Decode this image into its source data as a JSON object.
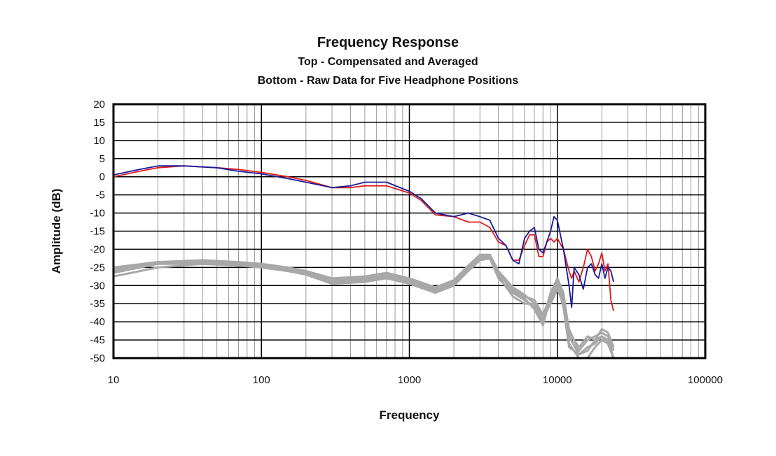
{
  "chart_data": {
    "type": "line",
    "title": "Frequency Response",
    "subtitle_lines": [
      "Top -  Compensated and Averaged",
      "Bottom - Raw Data for Five Headphone Positions"
    ],
    "xlabel": "Frequency",
    "ylabel": "Amplitude (dB)",
    "x_scale": "log",
    "xlim": [
      10,
      100000
    ],
    "ylim": [
      -50,
      20
    ],
    "x_ticks": [
      "10",
      "100",
      "1000",
      "10000",
      "100000"
    ],
    "y_ticks": [
      "20",
      "15",
      "10",
      "5",
      "0",
      "-5",
      "-10",
      "-15",
      "-20",
      "-25",
      "-30",
      "-35",
      "-40",
      "-45",
      "-50"
    ],
    "grid": true,
    "legend": "none",
    "series": [
      {
        "color": "#1a1a9c",
        "x": [
          10,
          15,
          20,
          30,
          50,
          70,
          100,
          150,
          200,
          300,
          400,
          500,
          700,
          1000,
          1200,
          1500,
          2000,
          2500,
          3000,
          3500,
          4000,
          4500,
          5000,
          5500,
          6000,
          6500,
          7000,
          7500,
          8000,
          8500,
          9000,
          9500,
          10000,
          11000,
          12000,
          12500,
          13000,
          14000,
          15000,
          16000,
          17000,
          18000,
          19000,
          20000,
          21000,
          22000,
          23000,
          24000
        ],
        "y": [
          0.5,
          2,
          3,
          3,
          2.5,
          1.5,
          0.8,
          -0.5,
          -1.5,
          -3,
          -2.5,
          -1.5,
          -1.5,
          -4,
          -6,
          -10,
          -11,
          -10,
          -11,
          -12,
          -17,
          -19,
          -23,
          -24,
          -17,
          -15,
          -14,
          -20,
          -21,
          -18,
          -15,
          -11,
          -12,
          -20,
          -30,
          -36,
          -25,
          -27,
          -31,
          -25,
          -24,
          -27,
          -28,
          -24,
          -28,
          -25,
          -26,
          -29
        ]
      },
      {
        "color": "#e01a1a",
        "x": [
          10,
          15,
          20,
          30,
          50,
          70,
          100,
          150,
          200,
          300,
          400,
          500,
          700,
          1000,
          1200,
          1500,
          2000,
          2500,
          3000,
          3500,
          4000,
          4500,
          5000,
          5500,
          6000,
          6500,
          7000,
          7500,
          8000,
          8500,
          9000,
          9500,
          10000,
          11000,
          12000,
          12500,
          13000,
          14000,
          15000,
          16000,
          17000,
          18000,
          19000,
          20000,
          21000,
          22000,
          23000,
          24000
        ],
        "y": [
          0,
          1.5,
          2.5,
          3,
          2.5,
          2,
          1.2,
          0,
          -1,
          -3,
          -3,
          -2.5,
          -2.5,
          -4.5,
          -6.5,
          -10.5,
          -11,
          -12.5,
          -12.5,
          -14,
          -18,
          -19,
          -23,
          -23,
          -19,
          -16,
          -16,
          -22,
          -22,
          -18,
          -17,
          -18,
          -17,
          -20,
          -26,
          -28,
          -26,
          -29,
          -25,
          -20,
          -22,
          -26,
          -24,
          -21,
          -26,
          -24,
          -34,
          -37
        ]
      },
      {
        "color": "#a8a8a8",
        "x": [
          10,
          20,
          40,
          70,
          100,
          150,
          200,
          300,
          500,
          700,
          1000,
          1500,
          2000,
          2500,
          3000,
          3500,
          4000,
          5000,
          6000,
          7000,
          8000,
          9000,
          10000,
          11000,
          12000,
          14000,
          16000,
          18000,
          20000,
          22000,
          24000
        ],
        "y": [
          -25,
          -23.5,
          -23.5,
          -24,
          -24.5,
          -25,
          -26,
          -28.5,
          -28,
          -27,
          -28.5,
          -31,
          -29,
          -25,
          -22,
          -22,
          -27,
          -31,
          -33,
          -34,
          -38,
          -33,
          -29,
          -33,
          -42,
          -48,
          -45,
          -44,
          -43,
          -44,
          -48
        ]
      },
      {
        "color": "#a8a8a8",
        "x": [
          10,
          20,
          40,
          70,
          100,
          150,
          200,
          300,
          500,
          700,
          1000,
          1500,
          2000,
          2500,
          3000,
          3500,
          4000,
          5000,
          6000,
          7000,
          8000,
          9000,
          10000,
          11000,
          12000,
          14000,
          16000,
          18000,
          20000,
          22000,
          24000
        ],
        "y": [
          -26,
          -24,
          -24,
          -24.5,
          -25,
          -25.5,
          -26.5,
          -29,
          -28.5,
          -27.5,
          -29,
          -31.5,
          -29.5,
          -25.5,
          -22.5,
          -22.5,
          -28,
          -32,
          -34,
          -36,
          -40,
          -34,
          -30,
          -34,
          -44,
          -49,
          -47,
          -46,
          -44,
          -45,
          -50
        ]
      },
      {
        "color": "#a8a8a8",
        "x": [
          10,
          20,
          40,
          70,
          100,
          150,
          200,
          300,
          500,
          700,
          1000,
          1500,
          2000,
          2500,
          3000,
          3500,
          4000,
          5000,
          6000,
          7000,
          8000,
          9000,
          10000,
          11000,
          12000,
          14000,
          16000,
          18000,
          20000,
          22000,
          24000
        ],
        "y": [
          -26.5,
          -24,
          -23.5,
          -24,
          -25,
          -26,
          -27,
          -29.5,
          -29,
          -28,
          -29.5,
          -32,
          -30,
          -26,
          -23,
          -22.5,
          -27.5,
          -33,
          -35,
          -35,
          -39,
          -35,
          -31,
          -35,
          -46,
          -50,
          -50,
          -47,
          -45,
          -46,
          -50
        ]
      },
      {
        "color": "#a8a8a8",
        "x": [
          10,
          20,
          40,
          70,
          100,
          150,
          200,
          300,
          500,
          700,
          1000,
          1500,
          2000,
          2500,
          3000,
          3500,
          4000,
          5000,
          6000,
          7000,
          8000,
          9000,
          10000,
          11000,
          12000,
          14000,
          16000,
          18000,
          20000,
          22000,
          24000
        ],
        "y": [
          -27.5,
          -25,
          -24,
          -24.5,
          -24.5,
          -25.5,
          -26.5,
          -28.5,
          -28,
          -27.5,
          -28.5,
          -31,
          -29,
          -25,
          -22,
          -21.5,
          -26.5,
          -31.5,
          -33.5,
          -36.5,
          -41,
          -33,
          -29.5,
          -36,
          -47,
          -49,
          -48,
          -45,
          -44,
          -46,
          -50
        ]
      },
      {
        "color": "#a8a8a8",
        "x": [
          10,
          20,
          40,
          70,
          100,
          150,
          200,
          300,
          500,
          700,
          1000,
          1500,
          2000,
          2500,
          3000,
          3500,
          4000,
          5000,
          6000,
          7000,
          8000,
          9000,
          10000,
          11000,
          12000,
          14000,
          16000,
          18000,
          20000,
          22000,
          24000
        ],
        "y": [
          -25.5,
          -23.5,
          -23,
          -23.5,
          -24,
          -25,
          -26,
          -28,
          -27.5,
          -26.5,
          -28,
          -30.5,
          -28.5,
          -24.5,
          -21.5,
          -21.5,
          -26,
          -30.5,
          -32.5,
          -35,
          -39.5,
          -32,
          -28,
          -32,
          -43,
          -47,
          -44,
          -45,
          -42,
          -43,
          -47
        ]
      }
    ]
  }
}
